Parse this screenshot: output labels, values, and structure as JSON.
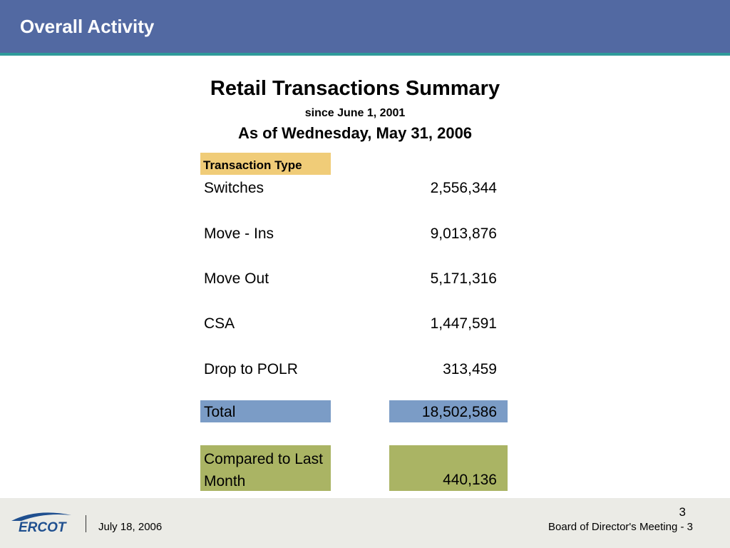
{
  "header": {
    "title": "Overall Activity"
  },
  "summary": {
    "title": "Retail Transactions Summary",
    "subtitle": "since June 1, 2001",
    "as_of": "As of Wednesday, May 31, 2006",
    "column_header": "Transaction Type",
    "rows": [
      {
        "label": "Switches",
        "value": "2,556,344"
      },
      {
        "label": "Move - Ins",
        "value": "9,013,876"
      },
      {
        "label": "Move Out",
        "value": "5,171,316"
      },
      {
        "label": "CSA",
        "value": "1,447,591"
      },
      {
        "label": "Drop to POLR",
        "value": "313,459"
      }
    ],
    "total": {
      "label": "Total",
      "value": "18,502,586"
    },
    "comparison": {
      "label": "Compared to Last Month",
      "value": "440,136"
    }
  },
  "footer": {
    "logo_text": "ERCOT",
    "date": "July 18, 2006",
    "meeting": "Board of Director's Meeting - 3",
    "page_number": "3"
  },
  "colors": {
    "header_bg": "#5269a2",
    "header_accent": "#2f9a9a",
    "column_header_bg": "#f0cc78",
    "total_bg": "#7b9cc6",
    "comparison_bg": "#aab464",
    "footer_bg": "#ebebe6"
  }
}
